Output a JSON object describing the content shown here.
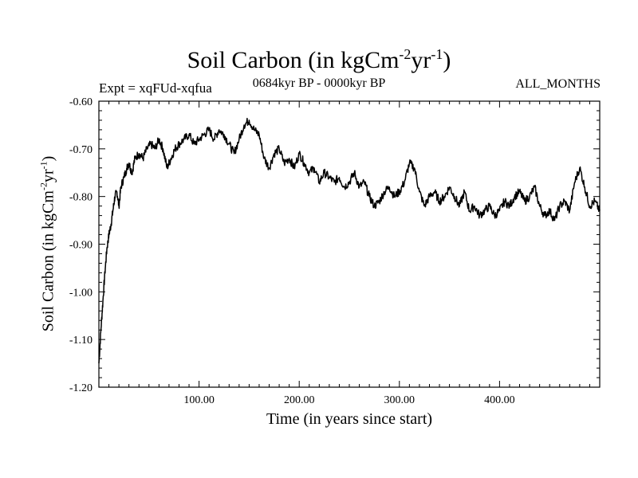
{
  "header": {
    "title_main": "Soil Carbon (in kgCm",
    "title_exp1": "-2",
    "title_mid": "yr",
    "title_exp2": "-1",
    "title_end": ")",
    "expt": "Expt = xqFUd-xqfua",
    "period": "0684kyr BP - 0000kyr BP",
    "months": "ALL_MONTHS"
  },
  "axes": {
    "xlabel": "Time (in years since start)",
    "ylabel_main": "Soil Carbon (in kgCm",
    "ylabel_exp1": "-2",
    "ylabel_mid": "yr",
    "ylabel_exp2": "-1",
    "ylabel_end": ")"
  },
  "chart_data": {
    "type": "line",
    "title": "Soil Carbon (in kgCm-2yr-1)",
    "xlabel": "Time (in years since start)",
    "ylabel": "Soil Carbon (in kgCm-2yr-1)",
    "xlim": [
      0,
      500
    ],
    "ylim": [
      -1.2,
      -0.6
    ],
    "x_ticks": [
      100,
      200,
      300,
      400
    ],
    "x_tick_labels": [
      "100.00",
      "200.00",
      "300.00",
      "400.00"
    ],
    "y_ticks": [
      -1.2,
      -1.1,
      -1.0,
      -0.9,
      -0.8,
      -0.7,
      -0.6
    ],
    "y_tick_labels": [
      "-1.20",
      "-1.10",
      "-1.00",
      "-0.90",
      "-0.80",
      "-0.70",
      "-0.60"
    ],
    "grid": false,
    "series": [
      {
        "name": "Soil Carbon",
        "x": [
          0,
          2,
          4,
          6,
          8,
          10,
          12,
          14,
          16,
          18,
          20,
          22,
          25,
          28,
          30,
          33,
          36,
          40,
          44,
          48,
          52,
          56,
          60,
          64,
          68,
          72,
          76,
          80,
          85,
          90,
          95,
          100,
          105,
          110,
          115,
          120,
          125,
          130,
          135,
          140,
          145,
          150,
          155,
          160,
          165,
          170,
          175,
          180,
          185,
          190,
          195,
          200,
          205,
          210,
          215,
          220,
          225,
          230,
          235,
          240,
          245,
          250,
          255,
          260,
          265,
          270,
          275,
          280,
          285,
          290,
          295,
          300,
          305,
          310,
          315,
          320,
          325,
          330,
          335,
          340,
          345,
          350,
          355,
          360,
          365,
          370,
          375,
          380,
          385,
          390,
          395,
          400,
          405,
          410,
          415,
          420,
          425,
          430,
          435,
          440,
          445,
          450,
          455,
          460,
          465,
          470,
          475,
          480,
          485,
          490,
          495,
          500
        ],
        "y": [
          -1.15,
          -1.08,
          -1.02,
          -0.96,
          -0.91,
          -0.88,
          -0.86,
          -0.83,
          -0.8,
          -0.79,
          -0.82,
          -0.78,
          -0.76,
          -0.74,
          -0.73,
          -0.75,
          -0.72,
          -0.71,
          -0.72,
          -0.7,
          -0.69,
          -0.7,
          -0.68,
          -0.7,
          -0.74,
          -0.72,
          -0.7,
          -0.69,
          -0.68,
          -0.67,
          -0.69,
          -0.68,
          -0.67,
          -0.66,
          -0.68,
          -0.66,
          -0.67,
          -0.69,
          -0.71,
          -0.68,
          -0.65,
          -0.64,
          -0.66,
          -0.67,
          -0.72,
          -0.74,
          -0.71,
          -0.7,
          -0.73,
          -0.72,
          -0.74,
          -0.71,
          -0.73,
          -0.75,
          -0.74,
          -0.77,
          -0.75,
          -0.76,
          -0.77,
          -0.76,
          -0.78,
          -0.77,
          -0.75,
          -0.78,
          -0.77,
          -0.8,
          -0.82,
          -0.81,
          -0.79,
          -0.78,
          -0.8,
          -0.79,
          -0.77,
          -0.73,
          -0.74,
          -0.79,
          -0.82,
          -0.8,
          -0.79,
          -0.81,
          -0.8,
          -0.78,
          -0.8,
          -0.82,
          -0.79,
          -0.83,
          -0.82,
          -0.84,
          -0.83,
          -0.82,
          -0.84,
          -0.83,
          -0.81,
          -0.82,
          -0.8,
          -0.79,
          -0.81,
          -0.8,
          -0.78,
          -0.82,
          -0.84,
          -0.83,
          -0.85,
          -0.82,
          -0.81,
          -0.83,
          -0.77,
          -0.74,
          -0.78,
          -0.82,
          -0.81,
          -0.83
        ]
      }
    ]
  }
}
